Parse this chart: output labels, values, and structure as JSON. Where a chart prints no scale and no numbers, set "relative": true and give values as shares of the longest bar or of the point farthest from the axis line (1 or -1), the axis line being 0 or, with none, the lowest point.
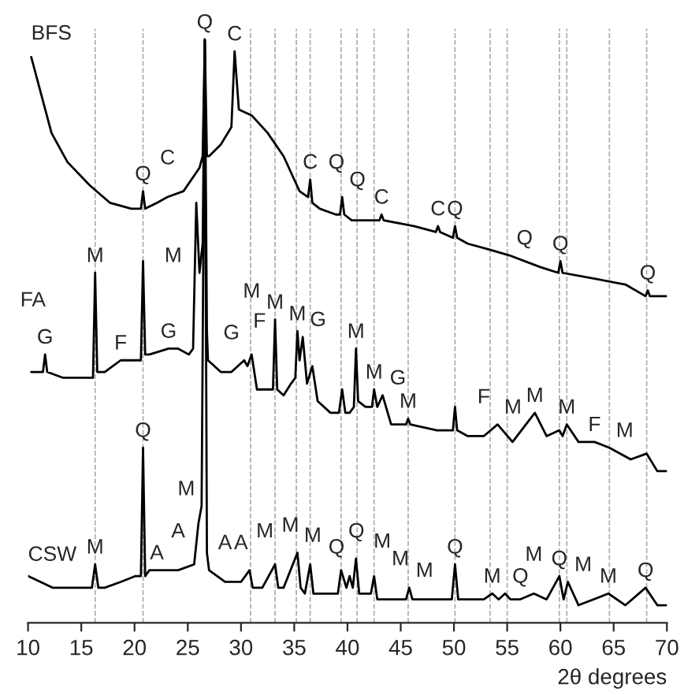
{
  "chart_data": {
    "type": "line",
    "relative": true,
    "xlabel": "2θ degrees",
    "xlim": [
      10,
      70
    ],
    "xticks": [
      10,
      15,
      20,
      25,
      30,
      35,
      40,
      45,
      50,
      55,
      60,
      65,
      70
    ],
    "grid": false,
    "legend": false,
    "marker": "none",
    "line_style": "solid",
    "series": [
      {
        "name": "BFS",
        "color": "#000000",
        "x": [
          10.3,
          12.2,
          13.7,
          15.8,
          17.7,
          19.7,
          20.6,
          20.8,
          21.0,
          22.1,
          23.1,
          24.6,
          26.1,
          26.4,
          26.6,
          26.8,
          27.0,
          28.1,
          29.1,
          29.4,
          29.8,
          31.0,
          32.5,
          34.0,
          35.5,
          36.3,
          36.5,
          36.7,
          37.4,
          38.9,
          39.3,
          39.5,
          39.7,
          40.4,
          43.0,
          43.2,
          43.4,
          46.3,
          48.3,
          48.5,
          48.7,
          49.9,
          50.1,
          50.3,
          51.3,
          53.3,
          55.2,
          58.1,
          59.8,
          60.0,
          60.2,
          63.2,
          66.1,
          68.0,
          68.2,
          68.4,
          70
        ],
        "values": [
          0.97,
          0.84,
          0.79,
          0.75,
          0.72,
          0.71,
          0.71,
          0.74,
          0.71,
          0.72,
          0.73,
          0.74,
          0.78,
          0.8,
          1.0,
          0.8,
          0.8,
          0.82,
          0.85,
          0.98,
          0.88,
          0.87,
          0.84,
          0.8,
          0.74,
          0.73,
          0.76,
          0.72,
          0.71,
          0.7,
          0.7,
          0.73,
          0.7,
          0.69,
          0.69,
          0.7,
          0.69,
          0.68,
          0.67,
          0.68,
          0.67,
          0.66,
          0.68,
          0.66,
          0.65,
          0.64,
          0.63,
          0.61,
          0.6,
          0.62,
          0.6,
          0.59,
          0.58,
          0.56,
          0.57,
          0.56,
          0.56
        ]
      },
      {
        "name": "FA",
        "color": "#000000",
        "x": [
          10.3,
          11.4,
          11.6,
          11.8,
          13.3,
          15.5,
          16.1,
          16.3,
          16.5,
          17.2,
          18.7,
          20.2,
          20.6,
          20.8,
          21.0,
          21.4,
          23.2,
          24.1,
          25.1,
          25.5,
          25.8,
          26.1,
          26.4,
          26.6,
          26.8,
          26.9,
          28.1,
          29.1,
          30.3,
          30.6,
          31.0,
          31.5,
          32.5,
          33.0,
          33.2,
          33.4,
          34.0,
          34.7,
          35.1,
          35.3,
          35.5,
          35.8,
          36.2,
          36.7,
          37.2,
          38.4,
          39.2,
          39.5,
          39.8,
          40.2,
          40.6,
          40.8,
          41.0,
          41.7,
          42.3,
          42.5,
          42.8,
          43.3,
          44.1,
          45.5,
          45.7,
          45.9,
          48.4,
          49.9,
          50.1,
          50.3,
          51.3,
          52.8,
          54.1,
          55.5,
          57.6,
          58.7,
          59.9,
          60.2,
          60.6,
          61.7,
          63.2,
          64.6,
          66.6,
          68.1,
          69.1,
          70
        ],
        "values": [
          0.43,
          0.43,
          0.46,
          0.43,
          0.42,
          0.42,
          0.42,
          0.6,
          0.43,
          0.43,
          0.45,
          0.45,
          0.45,
          0.62,
          0.46,
          0.46,
          0.47,
          0.47,
          0.46,
          0.47,
          0.72,
          0.6,
          0.65,
          1.0,
          0.5,
          0.45,
          0.43,
          0.43,
          0.45,
          0.44,
          0.46,
          0.4,
          0.4,
          0.4,
          0.52,
          0.4,
          0.39,
          0.41,
          0.42,
          0.5,
          0.45,
          0.49,
          0.41,
          0.44,
          0.38,
          0.36,
          0.36,
          0.4,
          0.36,
          0.36,
          0.37,
          0.47,
          0.38,
          0.37,
          0.37,
          0.4,
          0.37,
          0.39,
          0.34,
          0.34,
          0.35,
          0.34,
          0.33,
          0.33,
          0.37,
          0.33,
          0.32,
          0.32,
          0.34,
          0.31,
          0.36,
          0.32,
          0.33,
          0.32,
          0.34,
          0.31,
          0.31,
          0.3,
          0.28,
          0.29,
          0.26,
          0.26
        ]
      },
      {
        "name": "CSW",
        "color": "#000000",
        "x": [
          10,
          12.3,
          14.7,
          16.0,
          16.3,
          16.6,
          17.2,
          18.7,
          20.1,
          20.6,
          20.8,
          21.0,
          21.4,
          22.1,
          24.1,
          25.6,
          26.0,
          26.3,
          26.6,
          26.8,
          27.0,
          28.5,
          30.0,
          30.8,
          31.1,
          32.0,
          33.2,
          33.5,
          34.0,
          35.3,
          35.6,
          36.0,
          36.5,
          36.8,
          37.5,
          39.1,
          39.4,
          39.9,
          40.2,
          40.5,
          40.8,
          41.1,
          41.4,
          42.2,
          42.5,
          42.8,
          43.3,
          45.5,
          45.8,
          46.1,
          47.0,
          49.8,
          50.1,
          50.4,
          50.7,
          52.8,
          53.6,
          54.2,
          54.8,
          55.3,
          56.2,
          57.5,
          58.7,
          59.9,
          60.3,
          60.7,
          61.7,
          64.5,
          66.1,
          68.0,
          69.1,
          70
        ],
        "values": [
          0.08,
          0.06,
          0.06,
          0.06,
          0.1,
          0.06,
          0.06,
          0.07,
          0.08,
          0.08,
          0.3,
          0.08,
          0.09,
          0.09,
          0.09,
          0.1,
          0.17,
          0.2,
          1.0,
          0.12,
          0.09,
          0.07,
          0.07,
          0.09,
          0.06,
          0.06,
          0.1,
          0.06,
          0.06,
          0.12,
          0.06,
          0.05,
          0.1,
          0.05,
          0.05,
          0.05,
          0.09,
          0.06,
          0.08,
          0.06,
          0.11,
          0.05,
          0.05,
          0.05,
          0.08,
          0.04,
          0.04,
          0.04,
          0.06,
          0.04,
          0.04,
          0.04,
          0.1,
          0.04,
          0.04,
          0.04,
          0.05,
          0.04,
          0.05,
          0.04,
          0.04,
          0.05,
          0.04,
          0.08,
          0.04,
          0.07,
          0.03,
          0.05,
          0.03,
          0.06,
          0.03,
          0.03
        ]
      }
    ],
    "ref_lines": [
      {
        "axis": "x",
        "value": 16.3,
        "color": "#aaaaaa",
        "line_style": "dashed"
      },
      {
        "axis": "x",
        "value": 20.8,
        "color": "#aaaaaa",
        "line_style": "dashed"
      },
      {
        "axis": "x",
        "value": 30.9,
        "color": "#aaaaaa",
        "line_style": "dashed"
      },
      {
        "axis": "x",
        "value": 33.2,
        "color": "#aaaaaa",
        "line_style": "dashed"
      },
      {
        "axis": "x",
        "value": 35.2,
        "color": "#aaaaaa",
        "line_style": "dashed"
      },
      {
        "axis": "x",
        "value": 36.5,
        "color": "#aaaaaa",
        "line_style": "dashed"
      },
      {
        "axis": "x",
        "value": 39.4,
        "color": "#aaaaaa",
        "line_style": "dashed"
      },
      {
        "axis": "x",
        "value": 40.9,
        "color": "#aaaaaa",
        "line_style": "dashed"
      },
      {
        "axis": "x",
        "value": 42.5,
        "color": "#aaaaaa",
        "line_style": "dashed"
      },
      {
        "axis": "x",
        "value": 45.7,
        "color": "#aaaaaa",
        "line_style": "dashed"
      },
      {
        "axis": "x",
        "value": 50.1,
        "color": "#aaaaaa",
        "line_style": "dashed"
      },
      {
        "axis": "x",
        "value": 53.4,
        "color": "#aaaaaa",
        "line_style": "dashed"
      },
      {
        "axis": "x",
        "value": 55.0,
        "color": "#aaaaaa",
        "line_style": "dashed"
      },
      {
        "axis": "x",
        "value": 59.9,
        "color": "#aaaaaa",
        "line_style": "dashed"
      },
      {
        "axis": "x",
        "value": 60.6,
        "color": "#aaaaaa",
        "line_style": "dashed"
      },
      {
        "axis": "x",
        "value": 64.6,
        "color": "#aaaaaa",
        "line_style": "dashed"
      },
      {
        "axis": "x",
        "value": 68.1,
        "color": "#aaaaaa",
        "line_style": "dashed"
      }
    ],
    "annotations": [
      {
        "text": "Q",
        "x": 20.8,
        "y": 0.74
      },
      {
        "text": "C",
        "x": 23.1,
        "y": 0.73
      },
      {
        "text": "Q",
        "x": 26.6,
        "y": 1.0
      },
      {
        "text": "C",
        "x": 29.4,
        "y": 0.98
      },
      {
        "text": "C",
        "x": 36.5,
        "y": 0.76
      },
      {
        "text": "Q",
        "x": 36.5,
        "y": 0.76
      },
      {
        "text": "Q",
        "x": 39.5,
        "y": 0.73
      },
      {
        "text": "C",
        "x": 43.2,
        "y": 0.7
      },
      {
        "text": "C",
        "x": 48.5,
        "y": 0.68
      },
      {
        "text": "Q",
        "x": 50.1,
        "y": 0.68
      },
      {
        "text": "Q",
        "x": 55.2,
        "y": 0.63
      },
      {
        "text": "Q",
        "x": 60.0,
        "y": 0.62
      },
      {
        "text": "Q",
        "x": 68.2,
        "y": 0.57
      },
      {
        "text": "G",
        "x": 11.6,
        "y": 0.46
      },
      {
        "text": "M",
        "x": 16.3,
        "y": 0.6
      },
      {
        "text": "F",
        "x": 18.7,
        "y": 0.45
      },
      {
        "text": "G",
        "x": 23.2,
        "y": 0.47
      },
      {
        "text": "M",
        "x": 26.1,
        "y": 0.6
      },
      {
        "text": "G",
        "x": 29.1,
        "y": 0.43
      },
      {
        "text": "F",
        "x": 30.3,
        "y": 0.45
      },
      {
        "text": "M",
        "x": 31.0,
        "y": 0.46
      },
      {
        "text": "M",
        "x": 33.2,
        "y": 0.52
      },
      {
        "text": "M",
        "x": 35.3,
        "y": 0.5
      },
      {
        "text": "G",
        "x": 35.8,
        "y": 0.49
      },
      {
        "text": "M",
        "x": 40.8,
        "y": 0.47
      },
      {
        "text": "M",
        "x": 42.5,
        "y": 0.4
      },
      {
        "text": "G",
        "x": 43.3,
        "y": 0.39
      },
      {
        "text": "M",
        "x": 45.7,
        "y": 0.35
      },
      {
        "text": "F",
        "x": 52.8,
        "y": 0.32
      },
      {
        "text": "M",
        "x": 54.1,
        "y": 0.34
      },
      {
        "text": "M",
        "x": 57.6,
        "y": 0.36
      },
      {
        "text": "M",
        "x": 60.6,
        "y": 0.34
      },
      {
        "text": "F",
        "x": 63.2,
        "y": 0.31
      },
      {
        "text": "M",
        "x": 64.6,
        "y": 0.3
      },
      {
        "text": "M",
        "x": 16.3,
        "y": 0.1
      },
      {
        "text": "Q",
        "x": 20.8,
        "y": 0.3
      },
      {
        "text": "A",
        "x": 22.1,
        "y": 0.09
      },
      {
        "text": "A",
        "x": 24.1,
        "y": 0.09
      },
      {
        "text": "M",
        "x": 26.3,
        "y": 0.2
      },
      {
        "text": "A",
        "x": 28.5,
        "y": 0.07
      },
      {
        "text": "A",
        "x": 30.0,
        "y": 0.07
      },
      {
        "text": "M",
        "x": 30.8,
        "y": 0.09
      },
      {
        "text": "M",
        "x": 33.2,
        "y": 0.1
      },
      {
        "text": "M",
        "x": 35.3,
        "y": 0.12
      },
      {
        "text": "Q",
        "x": 36.5,
        "y": 0.1
      },
      {
        "text": "Q",
        "x": 39.4,
        "y": 0.09
      },
      {
        "text": "M",
        "x": 40.8,
        "y": 0.11
      },
      {
        "text": "M",
        "x": 42.5,
        "y": 0.08
      },
      {
        "text": "M",
        "x": 45.8,
        "y": 0.06
      },
      {
        "text": "Q",
        "x": 50.1,
        "y": 0.1
      },
      {
        "text": "M",
        "x": 53.6,
        "y": 0.05
      },
      {
        "text": "Q",
        "x": 54.8,
        "y": 0.05
      },
      {
        "text": "M",
        "x": 57.5,
        "y": 0.05
      },
      {
        "text": "Q",
        "x": 59.9,
        "y": 0.08
      },
      {
        "text": "M",
        "x": 60.7,
        "y": 0.07
      },
      {
        "text": "M",
        "x": 64.5,
        "y": 0.05
      },
      {
        "text": "Q",
        "x": 68.0,
        "y": 0.06
      }
    ]
  }
}
